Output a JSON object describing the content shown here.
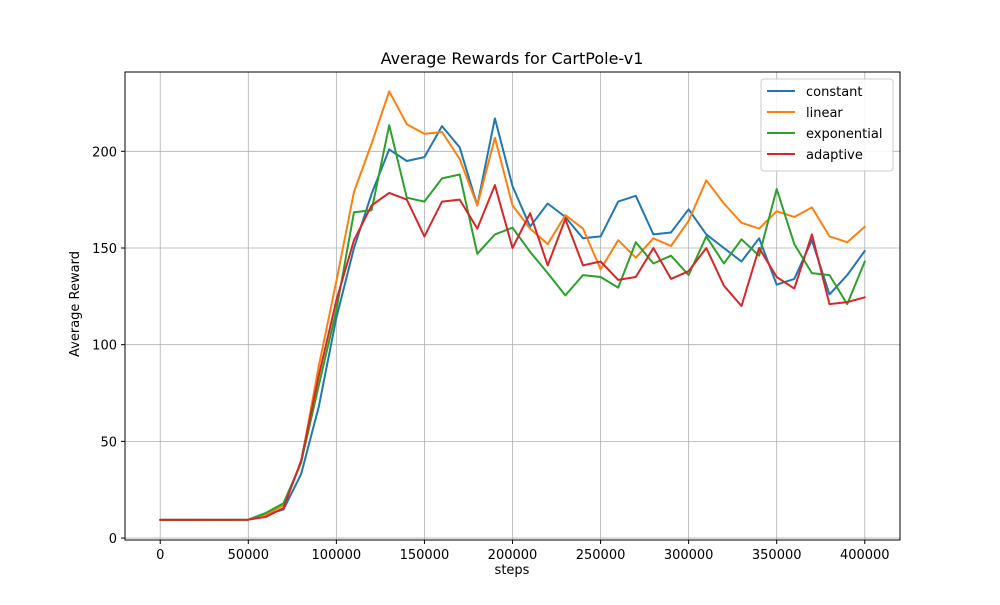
{
  "chart_data": {
    "type": "line",
    "title": "Average Rewards for CartPole-v1",
    "xlabel": "steps",
    "ylabel": "Average Reward",
    "xlim": [
      -20000,
      420000
    ],
    "ylim": [
      -1,
      241
    ],
    "grid": true,
    "legend_position": "top-right",
    "x_ticks": [
      0,
      50000,
      100000,
      150000,
      200000,
      250000,
      300000,
      350000,
      400000
    ],
    "y_ticks": [
      0,
      50,
      100,
      150,
      200
    ],
    "x": [
      0,
      50000,
      60000,
      70000,
      80000,
      90000,
      100000,
      110000,
      120000,
      130000,
      140000,
      150000,
      160000,
      170000,
      180000,
      190000,
      200000,
      210000,
      220000,
      230000,
      240000,
      250000,
      260000,
      270000,
      280000,
      290000,
      300000,
      310000,
      320000,
      330000,
      340000,
      350000,
      360000,
      370000,
      380000,
      390000,
      400000
    ],
    "series": [
      {
        "name": "constant",
        "color": "#1f77b4",
        "values": [
          9.4,
          9.5,
          12.0,
          14.8,
          33.0,
          68.0,
          114.0,
          150.0,
          178.0,
          201.0,
          195.0,
          197.0,
          213.0,
          202.0,
          172.0,
          217.0,
          182.0,
          161.0,
          173.0,
          166.0,
          155.0,
          156.0,
          174.0,
          177.0,
          157.0,
          158.0,
          170.0,
          157.0,
          150.0,
          143.0,
          155.0,
          131.0,
          134.0,
          154.0,
          126.0,
          136.0,
          148.5
        ]
      },
      {
        "name": "linear",
        "color": "#ff7f0e",
        "values": [
          9.4,
          9.5,
          12.0,
          17.0,
          39.0,
          89.0,
          133.0,
          179.0,
          204.0,
          231.0,
          214.0,
          209.0,
          210.0,
          196.0,
          172.0,
          207.0,
          172.0,
          160.0,
          152.0,
          167.0,
          160.0,
          139.0,
          154.0,
          145.0,
          155.0,
          151.0,
          164.0,
          185.0,
          173.0,
          163.0,
          160.0,
          169.0,
          166.0,
          171.0,
          156.0,
          153.0,
          161.0
        ]
      },
      {
        "name": "exponential",
        "color": "#2ca02c",
        "values": [
          9.4,
          9.5,
          13.0,
          18.0,
          39.0,
          79.0,
          118.0,
          168.5,
          169.5,
          213.5,
          176.0,
          174.0,
          186.0,
          188.0,
          147.0,
          157.0,
          160.5,
          148.0,
          137.0,
          125.5,
          136.0,
          135.0,
          129.5,
          153.0,
          142.0,
          146.0,
          136.0,
          156.0,
          142.0,
          154.5,
          146.0,
          180.5,
          152.0,
          137.0,
          136.0,
          121.0,
          143.0
        ]
      },
      {
        "name": "adaptive",
        "color": "#d62728",
        "values": [
          9.4,
          9.5,
          11.0,
          15.5,
          40.0,
          84.0,
          123.0,
          154.0,
          172.0,
          178.5,
          175.0,
          156.0,
          174.0,
          175.0,
          160.0,
          182.5,
          150.0,
          168.0,
          141.0,
          165.0,
          141.0,
          143.0,
          133.5,
          135.0,
          150.0,
          134.0,
          138.0,
          150.0,
          130.5,
          120.0,
          150.0,
          135.0,
          129.0,
          157.0,
          121.0,
          122.0,
          124.5
        ]
      }
    ]
  }
}
